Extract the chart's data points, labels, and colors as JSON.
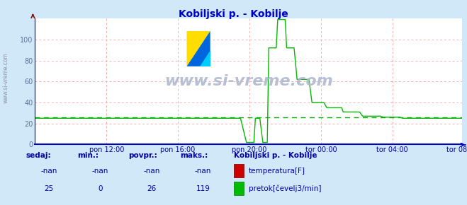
{
  "title": "Kobiljski p. - Kobilje",
  "title_color": "#0000cc",
  "bg_color": "#d0e8f8",
  "plot_bg_color": "#ffffff",
  "grid_color": "#ffaaaa",
  "axis_color": "#0000cc",
  "watermark_text": "www.si-vreme.com",
  "watermark_color": "#b0b8d0",
  "side_watermark_color": "#9090b0",
  "ylabel_color": "#6070a0",
  "xticklabel_color": "#0000aa",
  "xticklabels": [
    "pon 12:00",
    "pon 16:00",
    "pon 20:00",
    "tor 00:00",
    "tor 04:00",
    "tor 08:00"
  ],
  "xtick_positions": [
    48,
    96,
    144,
    192,
    240,
    287
  ],
  "ylim": [
    0,
    120
  ],
  "yticks": [
    0,
    20,
    40,
    60,
    80,
    100
  ],
  "flow_color": "#00bb00",
  "temp_color": "#cc0000",
  "avg_color": "#00aa00",
  "avg_value": 26,
  "legend_title": "Kobiljski p. - Kobilje",
  "footer_label_color": "#0000aa",
  "headers": [
    "sedaj:",
    "min.:",
    "povpr.:",
    "maks.:"
  ],
  "sedaj_temp": "-nan",
  "min_temp": "-nan",
  "povpr_temp": "-nan",
  "maks_temp": "-nan",
  "sedaj_flow": "25",
  "min_flow": "0",
  "povpr_flow": "26",
  "maks_flow": "119",
  "n_points": 288,
  "logo_yellow_color": "#ffdd00",
  "logo_blue_color": "#0066dd",
  "logo_cyan_color": "#00ccff"
}
